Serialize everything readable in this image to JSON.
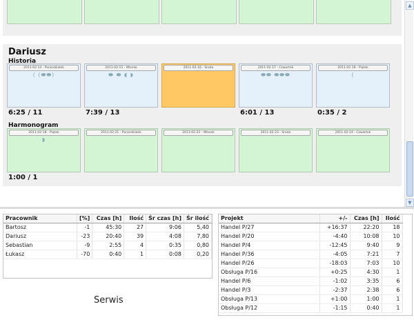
{
  "calendar": {
    "person": "Dariusz",
    "history_label": "Historia",
    "schedule_label": "Harmonogram",
    "history": [
      {
        "date": "2011-02-14 - Poniedziałek",
        "total": "6:25 / 11",
        "blobs": "( (⬬⬬)",
        "today": false
      },
      {
        "date": "2011-02-15 - Wtorek",
        "total": "7:39 / 13",
        "blobs": "⬬ ⬬ ◖ ◗",
        "today": false
      },
      {
        "date": "2011-02-16 - Środa",
        "total": "",
        "blobs": "",
        "today": true
      },
      {
        "date": "2011-02-17 - Czwartek",
        "total": "6:01 / 13",
        "blobs": "⬬⬬ ⬬⬬⬬",
        "today": false
      },
      {
        "date": "2011-02-18 - Piątek",
        "total": "0:35 / 2",
        "blobs": "(",
        "today": false
      }
    ],
    "schedule": [
      {
        "date": "2011-02-18 - Piątek",
        "blobs": "◗"
      },
      {
        "date": "2011-02-21 - Poniedziałek",
        "blobs": ""
      },
      {
        "date": "2011-02-22 - Wtorek",
        "blobs": ""
      },
      {
        "date": "2011-02-23 - Środa",
        "blobs": ""
      },
      {
        "date": "2011-02-24 - Czwartek",
        "blobs": ""
      }
    ],
    "schedule_total": "1:00 / 1"
  },
  "scrollbar": {
    "up_icon": "▲",
    "down_icon": "▼"
  },
  "workers": {
    "headers": [
      "Pracownik",
      "[%]",
      "Czas [h]",
      "Ilość",
      "Śr czas [h]",
      "Śr ilość"
    ],
    "rows": [
      [
        "Bartosz",
        "-1",
        "45:30",
        "27",
        "9:06",
        "5,40"
      ],
      [
        "Dariusz",
        "-23",
        "20:40",
        "39",
        "4:08",
        "7,80"
      ],
      [
        "Sebastian",
        "-9",
        "2:55",
        "4",
        "0:35",
        "0,80"
      ],
      [
        "Łukasz",
        "-70",
        "0:40",
        "1",
        "0:08",
        "0,20"
      ]
    ]
  },
  "service_label": "Serwis",
  "projects": {
    "headers": [
      "Projekt",
      "+/-",
      "Czas [h]",
      "Ilość"
    ],
    "rows": [
      [
        "Handel P/27",
        "+16:37",
        "22:20",
        "18"
      ],
      [
        "Handel P/20",
        "-4:40",
        "10:08",
        "10"
      ],
      [
        "Handel P/4",
        "-12:45",
        "9:40",
        "9"
      ],
      [
        "Handel P/36",
        "-4:05",
        "7:21",
        "7"
      ],
      [
        "Handel P/26",
        "-18:03",
        "7:03",
        "10"
      ],
      [
        "Obsługa P/16",
        "+0:25",
        "4:30",
        "1"
      ],
      [
        "Handel P/6",
        "-1:02",
        "3:35",
        "6"
      ],
      [
        "Handel P/3",
        "-2:37",
        "2:38",
        "6"
      ],
      [
        "Obsługa P/13",
        "+1:00",
        "1:00",
        "1"
      ],
      [
        "Obsługa P/12",
        "-1:15",
        "0:40",
        "1"
      ]
    ]
  }
}
